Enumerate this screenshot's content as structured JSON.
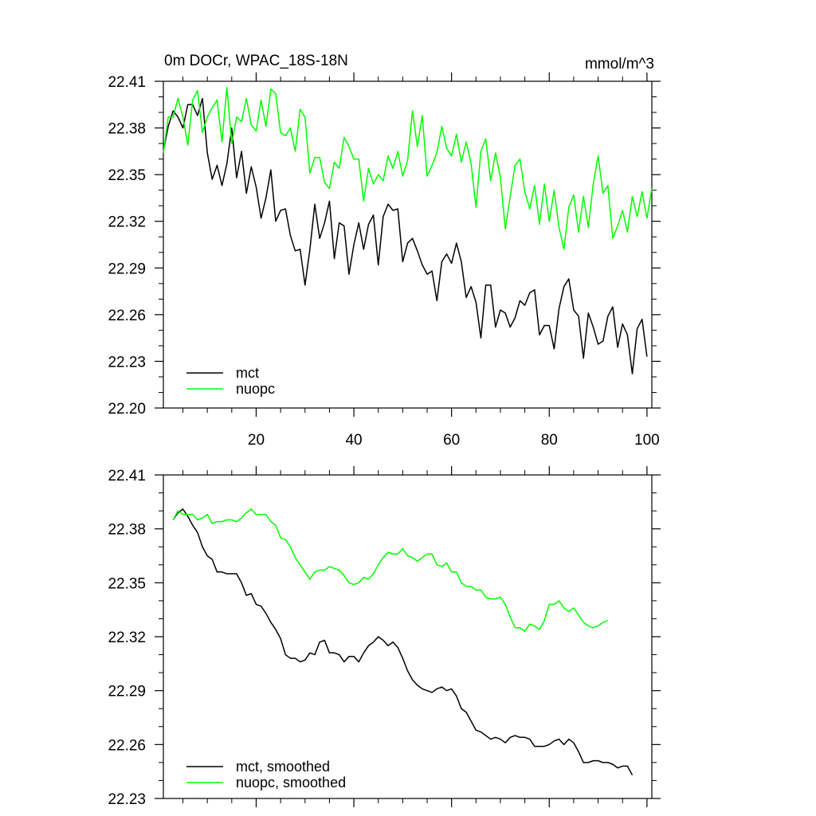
{
  "chart_data": [
    {
      "type": "line",
      "title": "0m DOCr, WPAC_18S-18N",
      "units": "mmol/m^3",
      "xlim": [
        1,
        101
      ],
      "ylim": [
        22.2,
        22.41
      ],
      "x_ticks": [
        20,
        40,
        60,
        80,
        100
      ],
      "y_ticks": [
        "22.41",
        "22.38",
        "22.35",
        "22.32",
        "22.29",
        "22.26",
        "22.23",
        "22.20"
      ],
      "legend_position": "bottom-left",
      "series": [
        {
          "name": "mct",
          "color": "#000000",
          "values": [
            22.365,
            22.381,
            22.391,
            22.387,
            22.38,
            22.395,
            22.395,
            22.388,
            22.399,
            22.364,
            22.347,
            22.356,
            22.343,
            22.357,
            22.38,
            22.348,
            22.365,
            22.338,
            22.355,
            22.342,
            22.322,
            22.335,
            22.353,
            22.32,
            22.327,
            22.328,
            22.311,
            22.301,
            22.302,
            22.279,
            22.302,
            22.331,
            22.309,
            22.319,
            22.333,
            22.296,
            22.319,
            22.317,
            22.286,
            22.305,
            22.319,
            22.302,
            22.318,
            22.324,
            22.292,
            22.323,
            22.331,
            22.327,
            22.328,
            22.294,
            22.306,
            22.309,
            22.301,
            22.292,
            22.286,
            22.288,
            22.269,
            22.294,
            22.299,
            22.293,
            22.306,
            22.294,
            22.271,
            22.278,
            22.268,
            22.245,
            22.279,
            22.279,
            22.252,
            22.263,
            22.261,
            22.252,
            22.258,
            22.269,
            22.266,
            22.274,
            22.276,
            22.247,
            22.253,
            22.253,
            22.238,
            22.264,
            22.278,
            22.283,
            22.263,
            22.259,
            22.232,
            22.261,
            22.252,
            22.241,
            22.243,
            22.259,
            22.265,
            22.239,
            22.254,
            22.247,
            22.222,
            22.251,
            22.257,
            22.233
          ]
        },
        {
          "name": "nuopc",
          "color": "#00ff00",
          "values": [
            22.364,
            22.387,
            22.387,
            22.399,
            22.387,
            22.369,
            22.398,
            22.404,
            22.377,
            22.387,
            22.393,
            22.398,
            22.371,
            22.406,
            22.37,
            22.387,
            22.384,
            22.399,
            22.382,
            22.378,
            22.398,
            22.381,
            22.405,
            22.402,
            22.377,
            22.375,
            22.38,
            22.365,
            22.392,
            22.387,
            22.351,
            22.361,
            22.361,
            22.345,
            22.341,
            22.358,
            22.354,
            22.374,
            22.368,
            22.36,
            22.36,
            22.333,
            22.354,
            22.344,
            22.35,
            22.346,
            22.362,
            22.354,
            22.365,
            22.349,
            22.359,
            22.391,
            22.368,
            22.388,
            22.349,
            22.356,
            22.364,
            22.381,
            22.367,
            22.362,
            22.376,
            22.358,
            22.371,
            22.357,
            22.329,
            22.365,
            22.373,
            22.346,
            22.364,
            22.348,
            22.315,
            22.336,
            22.356,
            22.36,
            22.339,
            22.328,
            22.343,
            22.318,
            22.344,
            22.32,
            22.34,
            22.316,
            22.302,
            22.329,
            22.337,
            22.313,
            22.336,
            22.316,
            22.344,
            22.362,
            22.338,
            22.343,
            22.309,
            22.317,
            22.327,
            22.313,
            22.336,
            22.323,
            22.339,
            22.322,
            22.341
          ]
        }
      ]
    },
    {
      "type": "line",
      "xlim": [
        1,
        101
      ],
      "ylim": [
        22.23,
        22.41
      ],
      "x_ticks": [
        20,
        40,
        60,
        80,
        100
      ],
      "y_ticks": [
        "22.41",
        "22.38",
        "22.35",
        "22.32",
        "22.29",
        "22.26",
        "22.23"
      ],
      "legend_position": "bottom-left",
      "series": [
        {
          "name": "mct, smoothed",
          "color": "#000000",
          "x_start": 3,
          "values": [
            22.385,
            22.389,
            22.391,
            22.387,
            22.382,
            22.378,
            22.37,
            22.365,
            22.363,
            22.356,
            22.356,
            22.355,
            22.355,
            22.355,
            22.35,
            22.343,
            22.344,
            22.338,
            22.337,
            22.333,
            22.328,
            22.324,
            22.319,
            22.31,
            22.308,
            22.308,
            22.306,
            22.307,
            22.311,
            22.31,
            22.317,
            22.318,
            22.311,
            22.311,
            22.31,
            22.306,
            22.309,
            22.309,
            22.306,
            22.311,
            22.315,
            22.317,
            22.32,
            22.318,
            22.315,
            22.317,
            22.314,
            22.308,
            22.301,
            22.296,
            22.293,
            22.291,
            22.29,
            22.289,
            22.291,
            22.292,
            22.29,
            22.291,
            22.287,
            22.28,
            22.278,
            22.273,
            22.268,
            22.267,
            22.265,
            22.263,
            22.264,
            22.263,
            22.261,
            22.264,
            22.265,
            22.264,
            22.264,
            22.263,
            22.259,
            22.259,
            22.259,
            22.26,
            22.262,
            22.263,
            22.26,
            22.263,
            22.261,
            22.256,
            22.25,
            22.25,
            22.251,
            22.251,
            22.25,
            22.25,
            22.249,
            22.247,
            22.248,
            22.248,
            22.243
          ]
        },
        {
          "name": "nuopc, smoothed",
          "color": "#00ff00",
          "x_start": 3,
          "values": [
            22.385,
            22.39,
            22.388,
            22.388,
            22.388,
            22.385,
            22.386,
            22.388,
            22.383,
            22.384,
            22.384,
            22.385,
            22.385,
            22.384,
            22.386,
            22.389,
            22.391,
            22.388,
            22.388,
            22.388,
            22.384,
            22.382,
            22.375,
            22.374,
            22.37,
            22.364,
            22.36,
            22.356,
            22.352,
            22.356,
            22.357,
            22.357,
            22.359,
            22.358,
            22.357,
            22.354,
            22.35,
            22.349,
            22.35,
            22.353,
            22.352,
            22.355,
            22.36,
            22.364,
            22.367,
            22.366,
            22.366,
            22.369,
            22.365,
            22.364,
            22.362,
            22.364,
            22.366,
            22.366,
            22.36,
            22.359,
            22.361,
            22.356,
            22.356,
            22.35,
            22.348,
            22.348,
            22.346,
            22.346,
            22.342,
            22.341,
            22.341,
            22.342,
            22.338,
            22.331,
            22.325,
            22.325,
            22.323,
            22.327,
            22.326,
            22.324,
            22.329,
            22.338,
            22.338,
            22.34,
            22.336,
            22.334,
            22.336,
            22.332,
            22.328,
            22.326,
            22.325,
            22.326,
            22.328,
            22.329
          ]
        }
      ]
    }
  ]
}
